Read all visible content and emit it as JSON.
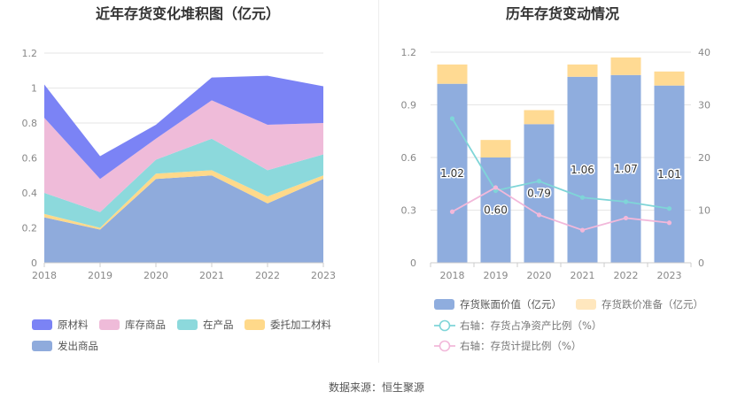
{
  "source": "数据来源：恒生聚源",
  "chart_data": [
    {
      "type": "area",
      "stacked": true,
      "title": "近年存货变化堆积图（亿元）",
      "categories": [
        "2018",
        "2019",
        "2020",
        "2021",
        "2022",
        "2023"
      ],
      "ylim": [
        0,
        1.2
      ],
      "yticks": [
        "0",
        "0.2",
        "0.4",
        "0.6",
        "0.8",
        "1",
        "1.2"
      ],
      "grid": true,
      "legend_position": "bottom",
      "series": [
        {
          "name": "发出商品",
          "color": "#8FABDC",
          "values": [
            0.26,
            0.19,
            0.48,
            0.5,
            0.34,
            0.48
          ]
        },
        {
          "name": "委托加工材料",
          "color": "#FFD98A",
          "values": [
            0.02,
            0.01,
            0.03,
            0.03,
            0.04,
            0.02
          ]
        },
        {
          "name": "在产品",
          "color": "#8CD9DC",
          "values": [
            0.12,
            0.09,
            0.08,
            0.18,
            0.15,
            0.12
          ]
        },
        {
          "name": "库存商品",
          "color": "#EFBBD9",
          "values": [
            0.43,
            0.19,
            0.12,
            0.22,
            0.26,
            0.18
          ]
        },
        {
          "name": "原材料",
          "color": "#7B83F5",
          "values": [
            0.19,
            0.13,
            0.08,
            0.13,
            0.28,
            0.21
          ]
        }
      ],
      "legend_order": [
        "原材料",
        "库存商品",
        "在产品",
        "委托加工材料",
        "发出商品"
      ]
    },
    {
      "type": "bar",
      "stacked": true,
      "title": "历年存货变动情况",
      "categories": [
        "2018",
        "2019",
        "2020",
        "2021",
        "2022",
        "2023"
      ],
      "ylim": [
        0,
        1.2
      ],
      "yticks": [
        "0",
        "0.3",
        "0.6",
        "0.9",
        "1.2"
      ],
      "y2lim": [
        0,
        40
      ],
      "y2ticks": [
        "0",
        "10",
        "20",
        "30",
        "40"
      ],
      "grid": true,
      "legend_position": "bottom",
      "series": [
        {
          "name": "存货账面价值（亿元）",
          "kind": "bar",
          "color": "#8FADDE",
          "values": [
            1.02,
            0.6,
            0.79,
            1.06,
            1.07,
            1.01
          ],
          "labels": [
            "1.02",
            "0.60",
            "0.79",
            "1.06",
            "1.07",
            "1.01"
          ]
        },
        {
          "name": "存货跌价准备（亿元）",
          "kind": "bar",
          "color": "#FFDA93",
          "values": [
            0.11,
            0.1,
            0.08,
            0.07,
            0.1,
            0.08
          ]
        },
        {
          "name": "右轴：存货占净资产比例（%）",
          "kind": "line",
          "axis": "right",
          "color": "#7FD5D8",
          "values": [
            27.4,
            13.7,
            15.5,
            12.4,
            11.6,
            10.3
          ]
        },
        {
          "name": "右轴：存货计提比例（%）",
          "kind": "line",
          "axis": "right",
          "color": "#F2B8DA",
          "values": [
            9.7,
            14.3,
            9.1,
            6.2,
            8.5,
            7.6
          ]
        }
      ]
    }
  ]
}
